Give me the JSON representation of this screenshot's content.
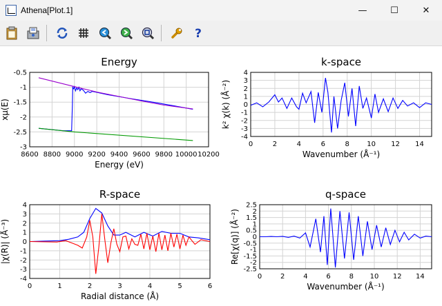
{
  "window": {
    "title": "Athena[Plot.1]",
    "minimize": "—",
    "maximize": "☐",
    "close": "✕"
  },
  "toolbar": {
    "buttons": [
      {
        "name": "clipboard-icon"
      },
      {
        "name": "save-icon"
      },
      {
        "name": "refresh-icon"
      },
      {
        "name": "grid-icon"
      },
      {
        "name": "zoom-out-icon"
      },
      {
        "name": "zoom-in-icon"
      },
      {
        "name": "zoom-reset-icon"
      },
      {
        "name": "wrench-icon"
      },
      {
        "name": "help-icon"
      }
    ]
  },
  "chart_data": [
    {
      "id": "energy",
      "type": "line",
      "title": "Energy",
      "xlabel": "Energy    (eV)",
      "ylabel": "xμ(E)",
      "xlim": [
        8600,
        10200
      ],
      "ylim": [
        -3,
        -0.5
      ],
      "xticks": [
        "8600",
        "8800",
        "9000",
        "9200",
        "9400",
        "9600",
        "9800",
        "10000",
        "10200"
      ],
      "yticks": [
        "-0.5",
        "-1",
        "-1.5",
        "-2",
        "-2.5",
        "-3"
      ],
      "grid": true,
      "series": [
        {
          "color": "#0000ff",
          "x": [
            8680,
            8900,
            8975,
            8982,
            8985,
            8992,
            9000,
            9010,
            9020,
            9030,
            9040,
            9050,
            9060,
            9080,
            9100,
            9120,
            9140,
            9160,
            9200,
            9300,
            9500,
            9700,
            9900,
            10060
          ],
          "y": [
            -2.38,
            -2.46,
            -2.46,
            -1.6,
            -1.0,
            -1.05,
            -0.98,
            -1.12,
            -1.02,
            -1.08,
            -1.0,
            -1.12,
            -1.05,
            -1.1,
            -1.2,
            -1.14,
            -1.18,
            -1.14,
            -1.17,
            -1.25,
            -1.38,
            -1.5,
            -1.63,
            -1.74
          ]
        },
        {
          "color": "#9900cc",
          "x": [
            8680,
            9000,
            9200,
            9400,
            9600,
            9800,
            10060
          ],
          "y": [
            -0.68,
            -0.98,
            -1.16,
            -1.31,
            -1.46,
            -1.6,
            -1.73
          ]
        },
        {
          "color": "#009900",
          "x": [
            8680,
            9000,
            10060
          ],
          "y": [
            -2.38,
            -2.5,
            -2.79
          ]
        }
      ]
    },
    {
      "id": "k-space",
      "type": "line",
      "title": "k-space",
      "xlabel": "Wavenumber   (Å⁻¹)",
      "ylabel": "k² χ(k)   (Å⁻²)",
      "xlim": [
        0,
        15
      ],
      "ylim": [
        -4,
        4
      ],
      "xticks": [
        "0",
        "2",
        "4",
        "6",
        "8",
        "10",
        "12",
        "14"
      ],
      "yticks": [
        "4",
        "3",
        "2",
        "1",
        "0",
        "-1",
        "-2",
        "-3",
        "-4"
      ],
      "grid": true,
      "series": [
        {
          "color": "#0000ff",
          "x": [
            0,
            0.5,
            1,
            1.5,
            2,
            2.3,
            2.6,
            3,
            3.4,
            3.8,
            4,
            4.3,
            4.6,
            5,
            5.3,
            5.6,
            5.9,
            6.2,
            6.4,
            6.7,
            6.9,
            7.2,
            7.5,
            7.8,
            8.1,
            8.4,
            8.7,
            9,
            9.3,
            9.6,
            10,
            10.3,
            10.6,
            11,
            11.4,
            11.8,
            12.2,
            12.6,
            13,
            13.5,
            14,
            14.5,
            15
          ],
          "y": [
            -0.1,
            0.2,
            -0.3,
            0.3,
            1.2,
            0.3,
            0.8,
            -0.5,
            0.8,
            -0.3,
            -0.6,
            1.4,
            0.2,
            1.6,
            -2.3,
            1.5,
            -1.0,
            3.3,
            1.5,
            -3.5,
            1.0,
            -3.0,
            0.5,
            2.7,
            -1.5,
            2.0,
            -2.7,
            2.3,
            -0.5,
            0.8,
            -1.7,
            1.3,
            -1.0,
            0.7,
            -0.9,
            0.8,
            -0.5,
            0.5,
            -0.2,
            0.2,
            -0.4,
            0.2,
            0.0
          ]
        }
      ]
    },
    {
      "id": "r-space",
      "type": "line",
      "title": "R-space",
      "xlabel": "Radial distance    (Å)",
      "ylabel": "|χ(R)|   (Å⁻³)",
      "xlim": [
        0,
        6
      ],
      "ylim": [
        -4,
        4
      ],
      "xticks": [
        "0",
        "1",
        "2",
        "3",
        "4",
        "5",
        "6"
      ],
      "yticks": [
        "4",
        "3",
        "2",
        "1",
        "0",
        "-1",
        "-2",
        "-3",
        "-4"
      ],
      "grid": true,
      "series": [
        {
          "color": "#0000ff",
          "x": [
            0,
            0.5,
            1,
            1.3,
            1.6,
            1.8,
            2.0,
            2.2,
            2.4,
            2.6,
            2.8,
            3.0,
            3.2,
            3.5,
            3.8,
            4.1,
            4.4,
            4.7,
            5.0,
            5.3,
            5.6,
            6.0
          ],
          "y": [
            0.0,
            0.05,
            0.1,
            0.25,
            0.5,
            1.0,
            2.5,
            3.6,
            3.1,
            1.7,
            0.7,
            0.7,
            1.0,
            0.5,
            1.0,
            0.6,
            1.1,
            0.9,
            0.9,
            0.5,
            0.4,
            0.2
          ]
        },
        {
          "color": "#ff0000",
          "x": [
            0,
            0.9,
            1.2,
            1.4,
            1.6,
            1.75,
            1.9,
            2.0,
            2.1,
            2.2,
            2.3,
            2.4,
            2.5,
            2.6,
            2.7,
            2.8,
            2.9,
            3.0,
            3.1,
            3.2,
            3.3,
            3.4,
            3.5,
            3.6,
            3.7,
            3.8,
            3.9,
            4.0,
            4.1,
            4.2,
            4.3,
            4.4,
            4.5,
            4.6,
            4.7,
            4.8,
            4.9,
            5.0,
            5.1,
            5.2,
            5.3,
            5.5,
            5.7,
            6.0
          ],
          "y": [
            0.0,
            -0.05,
            0.1,
            -0.15,
            -0.4,
            -0.7,
            0.5,
            2.3,
            0.5,
            -3.5,
            -0.6,
            3.0,
            0.2,
            -2.3,
            -0.2,
            1.4,
            -0.3,
            -1.1,
            0.5,
            0.6,
            -0.8,
            0.3,
            -0.3,
            -0.4,
            0.8,
            -0.8,
            0.9,
            -0.9,
            0.6,
            -1.1,
            0.9,
            -0.9,
            0.7,
            -1.0,
            0.9,
            -0.6,
            0.8,
            -0.8,
            0.7,
            -0.4,
            0.5,
            -0.3,
            0.2,
            0.0
          ]
        }
      ]
    },
    {
      "id": "q-space",
      "type": "line",
      "title": "q-space",
      "xlabel": "Wavenumber   (Å⁻¹)",
      "ylabel": "Re[χ(q)]   (Å⁻²)",
      "xlim": [
        0,
        15
      ],
      "ylim": [
        -2.5,
        2.5
      ],
      "xticks": [
        "0",
        "2",
        "4",
        "6",
        "8",
        "10",
        "12",
        "14"
      ],
      "yticks": [
        "2.5",
        "2",
        "1.5",
        "1",
        "0.5",
        "0",
        "-0.5",
        "-1",
        "-1.5",
        "-2",
        "-2.5"
      ],
      "grid": true,
      "series": [
        {
          "color": "#0000ff",
          "x": [
            0,
            0.5,
            1,
            1.5,
            2,
            2.5,
            3,
            3.5,
            4,
            4.4,
            4.9,
            5.3,
            5.6,
            5.9,
            6.2,
            6.6,
            7.0,
            7.4,
            7.8,
            8.2,
            8.6,
            9.0,
            9.4,
            9.8,
            10.2,
            10.6,
            11.0,
            11.4,
            11.8,
            12.2,
            12.6,
            13.0,
            13.5,
            14.0,
            14.5,
            15
          ],
          "y": [
            0.0,
            0.0,
            0.02,
            0.0,
            0.03,
            -0.05,
            0.05,
            -0.1,
            0.3,
            -0.8,
            1.4,
            -1.2,
            1.6,
            -2.2,
            2.2,
            -2.4,
            2.0,
            -1.7,
            1.9,
            -1.8,
            1.6,
            -1.5,
            1.2,
            -1.0,
            0.9,
            -0.8,
            0.7,
            -0.6,
            0.5,
            -0.4,
            0.35,
            -0.25,
            0.2,
            -0.1,
            0.05,
            0.0
          ]
        }
      ]
    }
  ]
}
